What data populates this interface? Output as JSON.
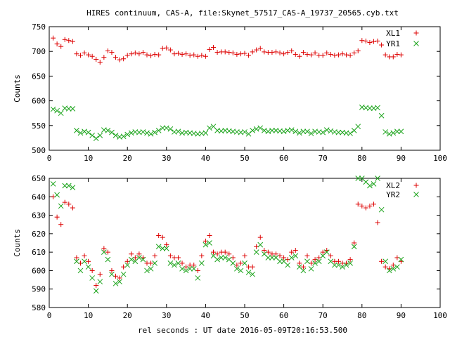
{
  "title": "HIRES continuum, CAS-A, file:Skynet_57517_CAS-A_19737_20565.cyb.txt",
  "xlabel": "rel seconds : UT date 2016-05-09T20:16:53.500",
  "colors": {
    "series1": "#dd0000",
    "series2": "#1aa31a"
  },
  "chart_data": [
    {
      "type": "scatter",
      "ylabel": "Counts",
      "xlim": [
        0,
        100
      ],
      "ylim": [
        500,
        750
      ],
      "x_ticks": [
        0,
        10,
        20,
        30,
        40,
        50,
        60,
        70,
        80,
        90,
        100
      ],
      "y_ticks": [
        500,
        550,
        600,
        650,
        700,
        750
      ],
      "legend": "top-right",
      "series": [
        {
          "name": "XL1",
          "marker": "plus",
          "x": [
            1,
            2,
            3,
            4,
            5,
            6,
            7,
            8,
            9,
            10,
            11,
            12,
            13,
            14,
            15,
            16,
            17,
            18,
            19,
            20,
            21,
            22,
            23,
            24,
            25,
            26,
            27,
            28,
            29,
            30,
            31,
            32,
            33,
            34,
            35,
            36,
            37,
            38,
            39,
            40,
            41,
            42,
            43,
            44,
            45,
            46,
            47,
            48,
            49,
            50,
            51,
            52,
            53,
            54,
            55,
            56,
            57,
            58,
            59,
            60,
            61,
            62,
            63,
            64,
            65,
            66,
            67,
            68,
            69,
            70,
            71,
            72,
            73,
            74,
            75,
            76,
            77,
            78,
            79,
            80,
            81,
            82,
            83,
            84,
            85,
            86,
            87,
            88,
            89,
            90
          ],
          "y": [
            727,
            715,
            710,
            724,
            722,
            720,
            695,
            692,
            697,
            693,
            690,
            684,
            678,
            688,
            701,
            698,
            688,
            683,
            685,
            692,
            695,
            697,
            695,
            698,
            693,
            691,
            694,
            693,
            706,
            707,
            703,
            695,
            696,
            694,
            695,
            692,
            693,
            690,
            692,
            690,
            704,
            708,
            698,
            699,
            699,
            698,
            697,
            694,
            695,
            696,
            692,
            699,
            703,
            706,
            699,
            698,
            698,
            699,
            697,
            695,
            698,
            701,
            694,
            690,
            698,
            694,
            693,
            697,
            692,
            692,
            697,
            694,
            692,
            693,
            695,
            693,
            692,
            697,
            701,
            722,
            721,
            718,
            720,
            721,
            713,
            693,
            689,
            689,
            694,
            693
          ]
        },
        {
          "name": "YR1",
          "marker": "cross",
          "x": [
            1,
            2,
            3,
            4,
            5,
            6,
            7,
            8,
            9,
            10,
            11,
            12,
            13,
            14,
            15,
            16,
            17,
            18,
            19,
            20,
            21,
            22,
            23,
            24,
            25,
            26,
            27,
            28,
            29,
            30,
            31,
            32,
            33,
            34,
            35,
            36,
            37,
            38,
            39,
            40,
            41,
            42,
            43,
            44,
            45,
            46,
            47,
            48,
            49,
            50,
            51,
            52,
            53,
            54,
            55,
            56,
            57,
            58,
            59,
            60,
            61,
            62,
            63,
            64,
            65,
            66,
            67,
            68,
            69,
            70,
            71,
            72,
            73,
            74,
            75,
            76,
            77,
            78,
            79,
            80,
            81,
            82,
            83,
            84,
            85,
            86,
            87,
            88,
            89,
            90
          ],
          "y": [
            583,
            580,
            575,
            585,
            584,
            584,
            540,
            535,
            538,
            536,
            530,
            524,
            530,
            541,
            540,
            536,
            530,
            527,
            528,
            532,
            535,
            537,
            536,
            537,
            535,
            533,
            536,
            540,
            545,
            545,
            543,
            537,
            538,
            535,
            536,
            535,
            534,
            533,
            534,
            535,
            545,
            548,
            540,
            539,
            540,
            539,
            538,
            537,
            536,
            537,
            533,
            540,
            543,
            545,
            540,
            538,
            540,
            540,
            539,
            538,
            540,
            541,
            538,
            535,
            538,
            538,
            534,
            538,
            537,
            536,
            541,
            539,
            537,
            536,
            536,
            535,
            534,
            540,
            548,
            587,
            586,
            585,
            585,
            586,
            570,
            537,
            533,
            535,
            538,
            538
          ]
        }
      ]
    },
    {
      "type": "scatter",
      "ylabel": "Counts",
      "xlim": [
        0,
        100
      ],
      "ylim": [
        580,
        650
      ],
      "x_ticks": [
        0,
        10,
        20,
        30,
        40,
        50,
        60,
        70,
        80,
        90,
        100
      ],
      "y_ticks": [
        580,
        590,
        600,
        610,
        620,
        630,
        640,
        650
      ],
      "legend": "top-right",
      "series": [
        {
          "name": "XL2",
          "marker": "plus",
          "x": [
            1,
            2,
            3,
            4,
            5,
            6,
            7,
            8,
            9,
            10,
            11,
            12,
            13,
            14,
            15,
            16,
            17,
            18,
            19,
            20,
            21,
            22,
            23,
            24,
            25,
            26,
            27,
            28,
            29,
            30,
            31,
            32,
            33,
            34,
            35,
            36,
            37,
            38,
            39,
            40,
            41,
            42,
            43,
            44,
            45,
            46,
            47,
            48,
            49,
            50,
            51,
            52,
            53,
            54,
            55,
            56,
            57,
            58,
            59,
            60,
            61,
            62,
            63,
            64,
            65,
            66,
            67,
            68,
            69,
            70,
            71,
            72,
            73,
            74,
            75,
            76,
            77,
            78,
            79,
            80,
            81,
            82,
            83,
            84,
            85,
            86,
            87,
            88,
            89,
            90
          ],
          "y": [
            640,
            629,
            625,
            637,
            636,
            634,
            607,
            604,
            608,
            605,
            600,
            592,
            598,
            612,
            610,
            600,
            597,
            596,
            602,
            605,
            609,
            607,
            609,
            607,
            604,
            604,
            608,
            619,
            618,
            614,
            608,
            607,
            607,
            604,
            602,
            603,
            603,
            600,
            608,
            616,
            619,
            610,
            609,
            610,
            610,
            609,
            607,
            603,
            604,
            608,
            602,
            602,
            613,
            618,
            611,
            610,
            609,
            609,
            608,
            607,
            606,
            610,
            611,
            604,
            602,
            608,
            604,
            606,
            607,
            610,
            611,
            608,
            605,
            605,
            604,
            604,
            606,
            615,
            636,
            635,
            634,
            635,
            636,
            626,
            605,
            602,
            601,
            603,
            607,
            605
          ]
        },
        {
          "name": "YR2",
          "marker": "cross",
          "x": [
            1,
            2,
            3,
            4,
            5,
            6,
            7,
            8,
            9,
            10,
            11,
            12,
            13,
            14,
            15,
            16,
            17,
            18,
            19,
            20,
            21,
            22,
            23,
            24,
            25,
            26,
            27,
            28,
            29,
            30,
            31,
            32,
            33,
            34,
            35,
            36,
            37,
            38,
            39,
            40,
            41,
            42,
            43,
            44,
            45,
            46,
            47,
            48,
            49,
            50,
            51,
            52,
            53,
            54,
            55,
            56,
            57,
            58,
            59,
            60,
            61,
            62,
            63,
            64,
            65,
            66,
            67,
            68,
            69,
            70,
            71,
            72,
            73,
            74,
            75,
            76,
            77,
            78,
            79,
            80,
            81,
            82,
            83,
            84,
            85,
            86,
            87,
            88,
            89,
            90
          ],
          "y": [
            647,
            641,
            635,
            646,
            646,
            645,
            605,
            600,
            605,
            602,
            596,
            589,
            594,
            610,
            606,
            598,
            593,
            594,
            598,
            603,
            606,
            605,
            607,
            606,
            600,
            601,
            604,
            613,
            612,
            612,
            604,
            603,
            604,
            601,
            600,
            601,
            601,
            596,
            604,
            614,
            615,
            608,
            606,
            607,
            607,
            606,
            604,
            601,
            600,
            604,
            599,
            598,
            610,
            614,
            609,
            607,
            607,
            607,
            605,
            605,
            603,
            607,
            608,
            602,
            600,
            605,
            601,
            604,
            605,
            608,
            610,
            605,
            603,
            603,
            602,
            603,
            604,
            613,
            650,
            650,
            648,
            646,
            647,
            650,
            633,
            605,
            600,
            601,
            602,
            606
          ]
        }
      ]
    }
  ]
}
